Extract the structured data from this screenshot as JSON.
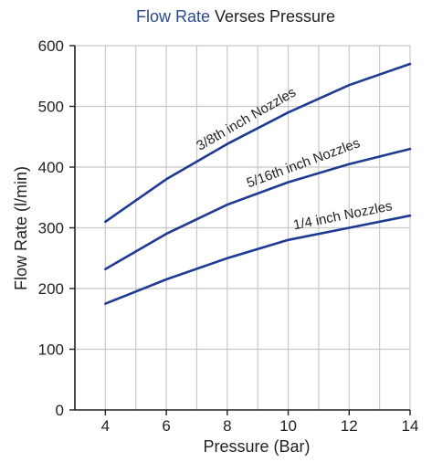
{
  "chart_data": {
    "type": "line",
    "title_prefix": "Flow Rate",
    "title_suffix": " Verses Pressure",
    "title_prefix_color": "#2a4a8f",
    "xlabel": "Pressure (Bar)",
    "ylabel": "Flow Rate (l/min)",
    "xlim": [
      3,
      14
    ],
    "ylim": [
      0,
      600
    ],
    "xticks": [
      4,
      6,
      8,
      10,
      12,
      14
    ],
    "yticks": [
      0,
      100,
      200,
      300,
      400,
      500,
      600
    ],
    "grid": true,
    "line_color": "#1f3a93",
    "series": [
      {
        "name": "3/8th inch Nozzles",
        "x": [
          4,
          6,
          8,
          10,
          12,
          14
        ],
        "values": [
          310,
          380,
          438,
          490,
          535,
          570
        ]
      },
      {
        "name": "5/16th inch Nozzles",
        "x": [
          4,
          6,
          8,
          10,
          12,
          14
        ],
        "values": [
          232,
          290,
          338,
          375,
          405,
          430
        ]
      },
      {
        "name": "1/4 inch Nozzles",
        "x": [
          4,
          6,
          8,
          10,
          12,
          14
        ],
        "values": [
          175,
          215,
          250,
          280,
          300,
          320
        ]
      }
    ]
  }
}
